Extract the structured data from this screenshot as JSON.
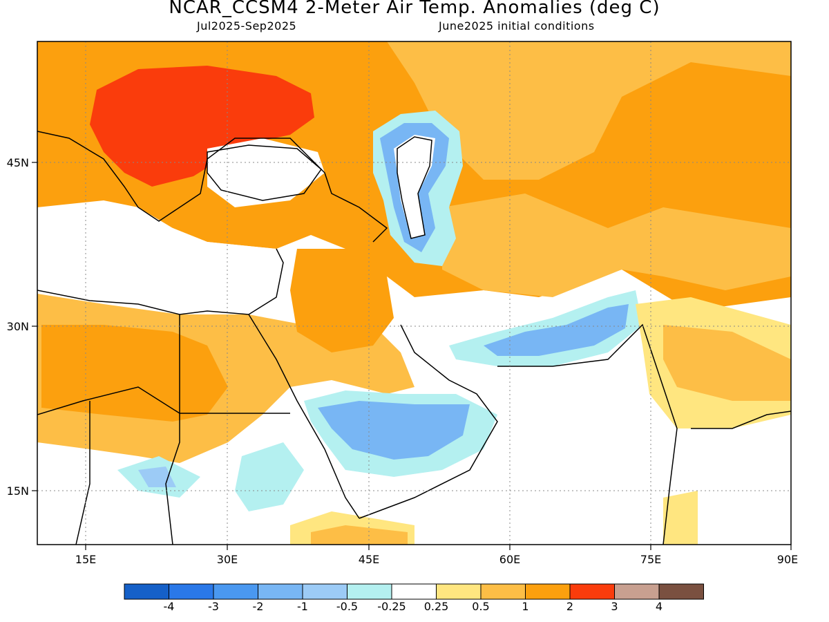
{
  "title": "NCAR_CCSM4 2-Meter Air Temp. Anomalies (deg C)",
  "subtitle_left": "Jul2025-Sep2025",
  "subtitle_right": "June2025 initial conditions",
  "axes": {
    "lon_labels": [
      "15E",
      "30E",
      "45E",
      "60E",
      "75E",
      "90E"
    ],
    "lat_labels": [
      "45N",
      "30N",
      "15N"
    ],
    "lon_range": [
      10,
      90
    ],
    "lat_range": [
      10,
      58
    ]
  },
  "colorbar": {
    "labels": [
      "-4",
      "-3",
      "-2",
      "-1",
      "-0.5",
      "-0.25",
      "0.25",
      "0.5",
      "1",
      "2",
      "3",
      "4"
    ],
    "colors": [
      "#1560c8",
      "#2a78e8",
      "#4a98f0",
      "#78b6f4",
      "#9ccbf6",
      "#b4f0f0",
      "#ffffff",
      "#ffe680",
      "#fdbe46",
      "#fca00e",
      "#fa3c0c",
      "#c8a090",
      "#7a5040"
    ]
  },
  "legend_colors": {
    "lt_-0.25": "#b4f0f0",
    "0.25_0.5": "#ffe680",
    "0.5_1": "#fdbe46",
    "1_2": "#fca00e",
    "2_3": "#fa3c0c"
  }
}
